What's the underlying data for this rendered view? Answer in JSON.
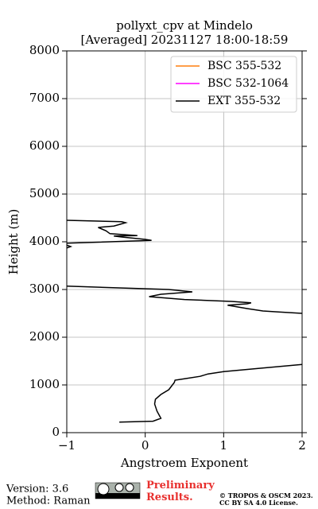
{
  "chart_data": {
    "type": "profile",
    "title": "pollyxt_cpv at Mindelo",
    "subtitle": "[Averaged] 20231127 18:00-18:59",
    "x_label": "Angstroem Exponent",
    "y_label": "Height (m)",
    "xlim": [
      -1,
      2
    ],
    "xticks": [
      {
        "value": -1,
        "label": "−1"
      },
      0,
      1,
      2
    ],
    "ylim": [
      0,
      8000
    ],
    "yticks": [
      0,
      1000,
      2000,
      3000,
      4000,
      5000,
      6000,
      7000,
      8000
    ],
    "grid": true,
    "legend": "upper right",
    "series": [
      {
        "name": "BSC 355-532",
        "color": "#ff7f0e",
        "values": [],
        "heights": []
      },
      {
        "name": "BSC 532-1064",
        "color": "#ff00ff",
        "values": [],
        "heights": []
      },
      {
        "name": "EXT 355-532",
        "color": "#000000",
        "values": [
          -0.33,
          0.1,
          0.2,
          0.15,
          0.12,
          0.13,
          0.2,
          0.3,
          0.37,
          0.38,
          0.5,
          0.7,
          0.8,
          1.0,
          1.4,
          2.0,
          null,
          2.0,
          1.7,
          1.5,
          1.3,
          1.05,
          1.3,
          1.35,
          1.1,
          0.5,
          0.05,
          0.2,
          0.6,
          0.3,
          -1.0,
          null,
          -1.0,
          -0.95,
          -1.0,
          null,
          -1.0,
          0.08,
          0.0,
          -0.3,
          -0.4,
          -0.1,
          -0.45,
          -0.5,
          -0.6,
          -0.4,
          -0.25,
          -0.3,
          -1.0
        ],
        "heights": [
          220,
          240,
          300,
          450,
          600,
          700,
          800,
          900,
          1050,
          1100,
          1130,
          1180,
          1230,
          1280,
          1340,
          1430,
          null,
          2500,
          2530,
          2550,
          2600,
          2670,
          2700,
          2720,
          2750,
          2790,
          2850,
          2900,
          2950,
          3000,
          3070,
          null,
          3870,
          3900,
          3930,
          null,
          3970,
          4030,
          4050,
          4100,
          4120,
          4130,
          4170,
          4230,
          4300,
          4330,
          4400,
          4420,
          4450
        ]
      }
    ]
  },
  "footer": {
    "version": "Version: 3.6",
    "method": "Method: Raman",
    "status": "Preliminary Results.",
    "copyright": "© TROPOS & OSCM 2023.",
    "license": "CC BY SA 4.0 License."
  }
}
